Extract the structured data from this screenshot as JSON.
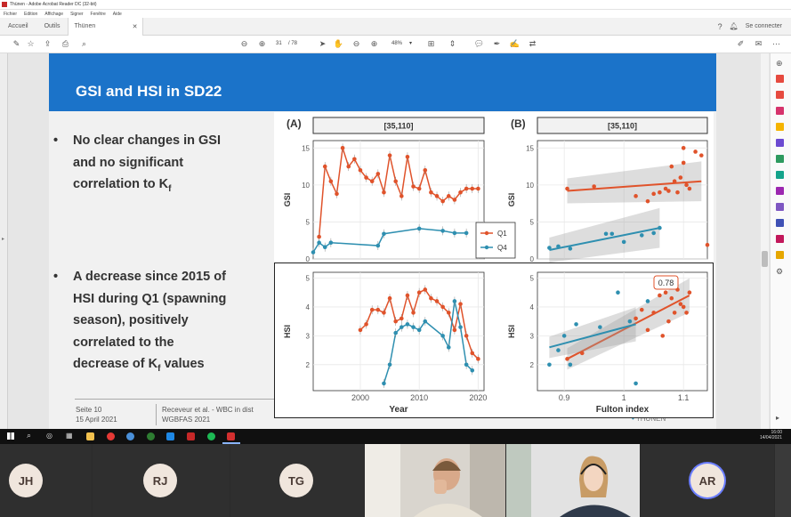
{
  "window": {
    "title": "Thünen - Adobe Acrobat Reader DC (32-bit)",
    "menu": [
      "Fichier",
      "Edition",
      "Affichage",
      "Signer",
      "Fenêtre",
      "Aide"
    ]
  },
  "tabs": {
    "home": "Accueil",
    "tools": "Outils",
    "doc": "Thünen",
    "connect": "Se connecter"
  },
  "toolbar": {
    "page_current": "31",
    "page_total": "/ 78",
    "zoom": "48%"
  },
  "slide": {
    "title": "GSI and HSI in SD22",
    "bullet1": [
      "No clear changes in GSI",
      "and no significant",
      "correlation to K"
    ],
    "bullet1_sub": "f",
    "bullet2": [
      "A decrease since 2015 of",
      "HSI during Q1 (spawning",
      "season), positively",
      "correlated to the",
      "decrease of K"
    ],
    "bullet2_sub": "f",
    "bullet2_tail": " values",
    "footer_page": "Seite 10",
    "footer_date": "15 April 2021",
    "footer_author": "Receveur et al. - WBC in dist",
    "footer_meeting": "WGBFAS 2021",
    "logo": "THÜNEN"
  },
  "chart_data": [
    {
      "type": "line",
      "panel": "(A)",
      "strip": "[35,110]",
      "xlabel": "Year",
      "ylabel_top": "GSI",
      "ylabel_bottom": "HSI",
      "xlim": [
        1992,
        2021
      ],
      "xticks": [
        2000,
        2010,
        2020
      ],
      "gsi_ylim": [
        0,
        16
      ],
      "gsi_yticks": [
        0,
        5,
        10,
        15
      ],
      "hsi_ylim": [
        1.1,
        5.2
      ],
      "hsi_yticks": [
        2,
        3,
        4,
        5
      ],
      "legend": [
        "Q1",
        "Q4"
      ],
      "series": [
        {
          "name": "Q1",
          "color": "#e0532b",
          "panel": "GSI",
          "x": [
            1993,
            1994,
            1995,
            1996,
            1997,
            1998,
            1999,
            2000,
            2001,
            2002,
            2003,
            2004,
            2005,
            2006,
            2007,
            2008,
            2009,
            2010,
            2011,
            2012,
            2013,
            2014,
            2015,
            2016,
            2017,
            2018,
            2019,
            2020
          ],
          "y": [
            3,
            12.5,
            10.5,
            8.8,
            15,
            12.5,
            13.5,
            12,
            11,
            10.5,
            11.5,
            9,
            14,
            10.5,
            8.5,
            13.8,
            9.8,
            9.5,
            12,
            9,
            8.5,
            7.8,
            8.5,
            8,
            9,
            9.5,
            9.5,
            9.5
          ]
        },
        {
          "name": "Q4",
          "color": "#2e8fb0",
          "panel": "GSI",
          "x": [
            1992,
            1993,
            1994,
            1995,
            2003,
            2004,
            2010,
            2014,
            2016,
            2018
          ],
          "y": [
            0.9,
            2.2,
            1.6,
            2.2,
            1.8,
            3.4,
            4.1,
            3.8,
            3.5,
            3.5
          ]
        },
        {
          "name": "Q1",
          "color": "#e0532b",
          "panel": "HSI",
          "x": [
            2000,
            2001,
            2002,
            2003,
            2004,
            2005,
            2006,
            2007,
            2008,
            2009,
            2010,
            2011,
            2012,
            2013,
            2014,
            2015,
            2016,
            2017,
            2018,
            2019,
            2020
          ],
          "y": [
            3.2,
            3.4,
            3.9,
            3.9,
            3.8,
            4.3,
            3.5,
            3.6,
            4.4,
            3.8,
            4.5,
            4.6,
            4.3,
            4.2,
            4.0,
            3.8,
            3.2,
            4.1,
            3.0,
            2.4,
            2.2
          ]
        },
        {
          "name": "Q4",
          "color": "#2e8fb0",
          "panel": "HSI",
          "x": [
            2004,
            2005,
            2006,
            2007,
            2008,
            2009,
            2010,
            2011,
            2014,
            2015,
            2016,
            2017,
            2018,
            2019
          ],
          "y": [
            1.35,
            2.0,
            3.1,
            3.3,
            3.4,
            3.3,
            3.2,
            3.5,
            3.0,
            2.6,
            4.2,
            3.3,
            2.0,
            1.8
          ]
        }
      ]
    },
    {
      "type": "scatter",
      "panel": "(B)",
      "strip": "[35,110]",
      "xlabel": "Fulton index",
      "ylabel_top": "GSI",
      "ylabel_bottom": "HSI",
      "xlim": [
        0.855,
        1.14
      ],
      "xticks": [
        0.9,
        1.0,
        1.1
      ],
      "gsi_ylim": [
        0,
        16
      ],
      "gsi_yticks": [
        0,
        5,
        10,
        15
      ],
      "hsi_ylim": [
        1.1,
        5.2
      ],
      "hsi_yticks": [
        2,
        3,
        4,
        5
      ],
      "annotation": "0.78",
      "series": [
        {
          "name": "Q1",
          "color": "#e0532b",
          "panel": "GSI",
          "x": [
            0.905,
            0.95,
            1.02,
            1.04,
            1.05,
            1.06,
            1.07,
            1.075,
            1.08,
            1.085,
            1.09,
            1.095,
            1.1,
            1.1,
            1.105,
            1.11,
            1.12,
            1.13,
            1.14
          ],
          "y": [
            9.5,
            9.8,
            8.5,
            7.8,
            8.8,
            9,
            9.5,
            9.2,
            12.5,
            10.5,
            9,
            11,
            13,
            15,
            10,
            9.5,
            14.5,
            14,
            1.9
          ]
        },
        {
          "name": "Q4",
          "color": "#2e8fb0",
          "panel": "GSI",
          "x": [
            0.875,
            0.89,
            0.91,
            0.97,
            0.98,
            1.0,
            1.03,
            1.05,
            1.06
          ],
          "y": [
            1.5,
            1.7,
            1.4,
            3.4,
            3.4,
            2.3,
            3.2,
            3.5,
            4.2
          ]
        },
        {
          "name": "Q1",
          "color": "#e0532b",
          "panel": "HSI",
          "x": [
            0.905,
            0.93,
            1.02,
            1.03,
            1.04,
            1.05,
            1.06,
            1.065,
            1.07,
            1.075,
            1.08,
            1.085,
            1.09,
            1.095,
            1.1,
            1.105,
            1.11
          ],
          "y": [
            2.2,
            2.4,
            3.6,
            3.9,
            3.2,
            3.8,
            4.4,
            3.0,
            4.5,
            3.5,
            4.3,
            3.8,
            4.6,
            4.1,
            4.0,
            3.8,
            4.5
          ]
        },
        {
          "name": "Q4",
          "color": "#2e8fb0",
          "panel": "HSI",
          "x": [
            0.875,
            0.89,
            0.9,
            0.91,
            0.92,
            0.96,
            0.99,
            1.01,
            1.02,
            1.04
          ],
          "y": [
            2.0,
            2.5,
            3.0,
            2.0,
            3.4,
            3.3,
            4.5,
            3.5,
            1.35,
            4.2
          ]
        }
      ],
      "fits": [
        {
          "panel": "GSI",
          "color": "#e0532b",
          "x": [
            0.905,
            1.13
          ],
          "y": [
            9.2,
            10.5
          ]
        },
        {
          "panel": "GSI",
          "color": "#2e8fb0",
          "x": [
            0.875,
            1.06
          ],
          "y": [
            1.2,
            4.2
          ]
        },
        {
          "panel": "HSI",
          "color": "#e0532b",
          "x": [
            0.905,
            1.11
          ],
          "y": [
            2.2,
            4.4
          ]
        },
        {
          "panel": "HSI",
          "color": "#2e8fb0",
          "x": [
            0.875,
            1.02
          ],
          "y": [
            2.6,
            3.4
          ]
        }
      ]
    }
  ],
  "taskbar": {
    "time": "16:00",
    "date": "14/04/2021"
  },
  "participants": [
    {
      "initials": "JH"
    },
    {
      "initials": "RJ"
    },
    {
      "initials": "TG"
    },
    {
      "initials": "AR"
    }
  ]
}
